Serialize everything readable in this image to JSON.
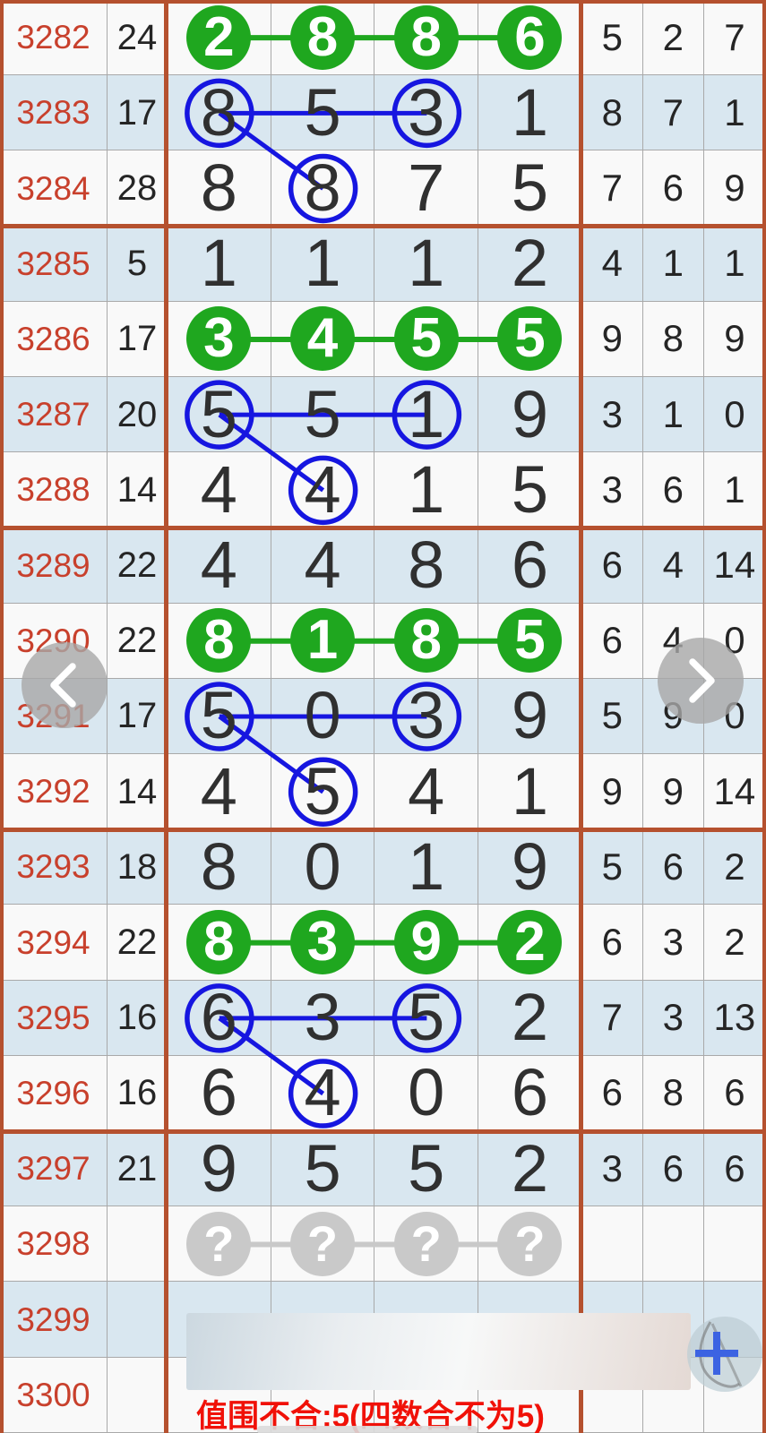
{
  "table": {
    "columns": [
      "period",
      "sum",
      "digit1",
      "digit2",
      "digit3",
      "digit4",
      "stat1",
      "stat2",
      "stat3"
    ],
    "rows": [
      {
        "period": "3282",
        "sum": "24",
        "digits": [
          "2",
          "8",
          "8",
          "6"
        ],
        "right": [
          "5",
          "2",
          "7"
        ],
        "highlight": "green"
      },
      {
        "period": "3283",
        "sum": "17",
        "digits": [
          "8",
          "5",
          "3",
          "1"
        ],
        "right": [
          "8",
          "7",
          "1"
        ],
        "highlight": null
      },
      {
        "period": "3284",
        "sum": "28",
        "digits": [
          "8",
          "8",
          "7",
          "5"
        ],
        "right": [
          "7",
          "6",
          "9"
        ],
        "highlight": null
      },
      {
        "period": "3285",
        "sum": "5",
        "digits": [
          "1",
          "1",
          "1",
          "2"
        ],
        "right": [
          "4",
          "1",
          "1"
        ],
        "highlight": null
      },
      {
        "period": "3286",
        "sum": "17",
        "digits": [
          "3",
          "4",
          "5",
          "5"
        ],
        "right": [
          "9",
          "8",
          "9"
        ],
        "highlight": "green"
      },
      {
        "period": "3287",
        "sum": "20",
        "digits": [
          "5",
          "5",
          "1",
          "9"
        ],
        "right": [
          "3",
          "1",
          "0"
        ],
        "highlight": null
      },
      {
        "period": "3288",
        "sum": "14",
        "digits": [
          "4",
          "4",
          "1",
          "5"
        ],
        "right": [
          "3",
          "6",
          "1"
        ],
        "highlight": null
      },
      {
        "period": "3289",
        "sum": "22",
        "digits": [
          "4",
          "4",
          "8",
          "6"
        ],
        "right": [
          "6",
          "4",
          "14"
        ],
        "highlight": null
      },
      {
        "period": "3290",
        "sum": "22",
        "digits": [
          "8",
          "1",
          "8",
          "5"
        ],
        "right": [
          "6",
          "4",
          "0"
        ],
        "highlight": "green"
      },
      {
        "period": "3291",
        "sum": "17",
        "digits": [
          "5",
          "0",
          "3",
          "9"
        ],
        "right": [
          "5",
          "9",
          "0"
        ],
        "highlight": null
      },
      {
        "period": "3292",
        "sum": "14",
        "digits": [
          "4",
          "5",
          "4",
          "1"
        ],
        "right": [
          "9",
          "9",
          "14"
        ],
        "highlight": null
      },
      {
        "period": "3293",
        "sum": "18",
        "digits": [
          "8",
          "0",
          "1",
          "9"
        ],
        "right": [
          "5",
          "6",
          "2"
        ],
        "highlight": null
      },
      {
        "period": "3294",
        "sum": "22",
        "digits": [
          "8",
          "3",
          "9",
          "2"
        ],
        "right": [
          "6",
          "3",
          "2"
        ],
        "highlight": "green"
      },
      {
        "period": "3295",
        "sum": "16",
        "digits": [
          "6",
          "3",
          "5",
          "2"
        ],
        "right": [
          "7",
          "3",
          "13"
        ],
        "highlight": null
      },
      {
        "period": "3296",
        "sum": "16",
        "digits": [
          "6",
          "4",
          "0",
          "6"
        ],
        "right": [
          "6",
          "8",
          "6"
        ],
        "highlight": null
      },
      {
        "period": "3297",
        "sum": "21",
        "digits": [
          "9",
          "5",
          "5",
          "2"
        ],
        "right": [
          "3",
          "6",
          "6"
        ],
        "highlight": null
      },
      {
        "period": "3298",
        "sum": "",
        "digits": [
          "?",
          "?",
          "?",
          "?"
        ],
        "right": [
          "",
          "",
          ""
        ],
        "highlight": "gray"
      },
      {
        "period": "3299",
        "sum": "",
        "digits": [
          "",
          "",
          "",
          ""
        ],
        "right": [
          "",
          "",
          ""
        ],
        "highlight": null
      },
      {
        "period": "3300",
        "sum": "",
        "digits": [
          "",
          "",
          "",
          ""
        ],
        "right": [
          "",
          "",
          ""
        ],
        "highlight": null
      }
    ],
    "group_breaks_after": [
      "3284",
      "3288",
      "3292",
      "3296"
    ]
  },
  "annotations": {
    "links": [
      {
        "type": "green",
        "row": "3282",
        "cols": [
          0,
          3
        ]
      },
      {
        "type": "green",
        "row": "3286",
        "cols": [
          0,
          3
        ]
      },
      {
        "type": "green",
        "row": "3290",
        "cols": [
          0,
          3
        ]
      },
      {
        "type": "green",
        "row": "3294",
        "cols": [
          0,
          3
        ]
      },
      {
        "type": "blue_h",
        "row": "3283",
        "cols": [
          0,
          2
        ]
      },
      {
        "type": "blue_h",
        "row": "3287",
        "cols": [
          0,
          2
        ]
      },
      {
        "type": "blue_h",
        "row": "3291",
        "cols": [
          0,
          2
        ]
      },
      {
        "type": "blue_h",
        "row": "3295",
        "cols": [
          0,
          2
        ]
      },
      {
        "type": "blue_d",
        "from": {
          "row": "3283",
          "col": 0
        },
        "to": {
          "row": "3284",
          "col": 1
        }
      },
      {
        "type": "blue_d",
        "from": {
          "row": "3287",
          "col": 0
        },
        "to": {
          "row": "3288",
          "col": 1
        }
      },
      {
        "type": "blue_d",
        "from": {
          "row": "3291",
          "col": 0
        },
        "to": {
          "row": "3292",
          "col": 1
        }
      },
      {
        "type": "blue_d",
        "from": {
          "row": "3295",
          "col": 0
        },
        "to": {
          "row": "3296",
          "col": 1
        }
      },
      {
        "type": "gray",
        "row": "3298",
        "cols": [
          0,
          3
        ]
      }
    ],
    "blue_circles": [
      {
        "row": "3283",
        "cols": [
          0,
          2
        ]
      },
      {
        "row": "3284",
        "cols": [
          1
        ]
      },
      {
        "row": "3287",
        "cols": [
          0,
          2
        ]
      },
      {
        "row": "3288",
        "cols": [
          1
        ]
      },
      {
        "row": "3291",
        "cols": [
          0,
          2
        ]
      },
      {
        "row": "3292",
        "cols": [
          1
        ]
      },
      {
        "row": "3295",
        "cols": [
          0,
          2
        ]
      },
      {
        "row": "3296",
        "cols": [
          1
        ]
      }
    ]
  },
  "warning_text": "值围不合:5(四数合不为5)",
  "nav": {
    "left_icon": "chevron-left",
    "right_icon": "chevron-right"
  },
  "fab": {
    "icon": "plus"
  },
  "colors": {
    "group_border": "#b5512f",
    "period_red": "#c8402c",
    "hot_green": "#1fa71f",
    "mark_blue": "#1616e0",
    "pending_gray": "#c9c9c9",
    "row_alt_blue": "#d9e7f0",
    "warning_red": "#f01108"
  }
}
